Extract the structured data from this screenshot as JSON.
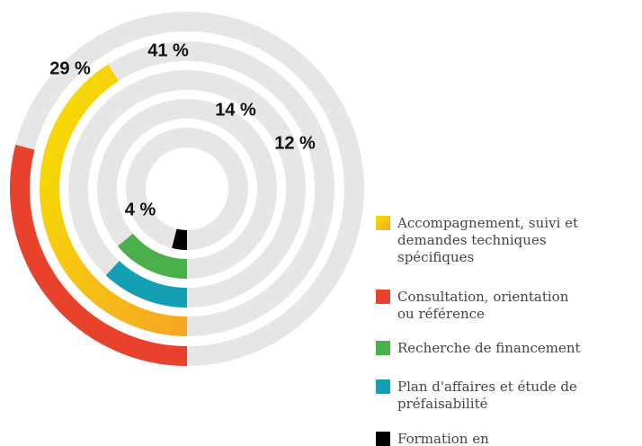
{
  "chart_data": {
    "type": "radial-bar",
    "series": [
      {
        "name": "Accompagnement, suivi et demandes techniques spécifiques",
        "color": "#f7c600",
        "values": [
          41
        ],
        "value_labels": [
          "41 %"
        ]
      },
      {
        "name": "Consultation, orientation ou référence",
        "color": "#e8412c",
        "values": [
          29
        ],
        "value_labels": [
          "29 %"
        ]
      },
      {
        "name": "Recherche de financement",
        "color": "#4cb04a",
        "values": [
          14
        ],
        "value_labels": [
          "14 %"
        ]
      },
      {
        "name": "Plan d'affaires et étude de préfaisabilité",
        "color": "#13a0b3",
        "values": [
          12
        ],
        "value_labels": [
          "12 %"
        ]
      },
      {
        "name": "Formation en entrepreneuriat",
        "color": "#000000",
        "values": [
          4
        ],
        "value_labels": [
          "4 %"
        ]
      }
    ],
    "legend": "right"
  }
}
